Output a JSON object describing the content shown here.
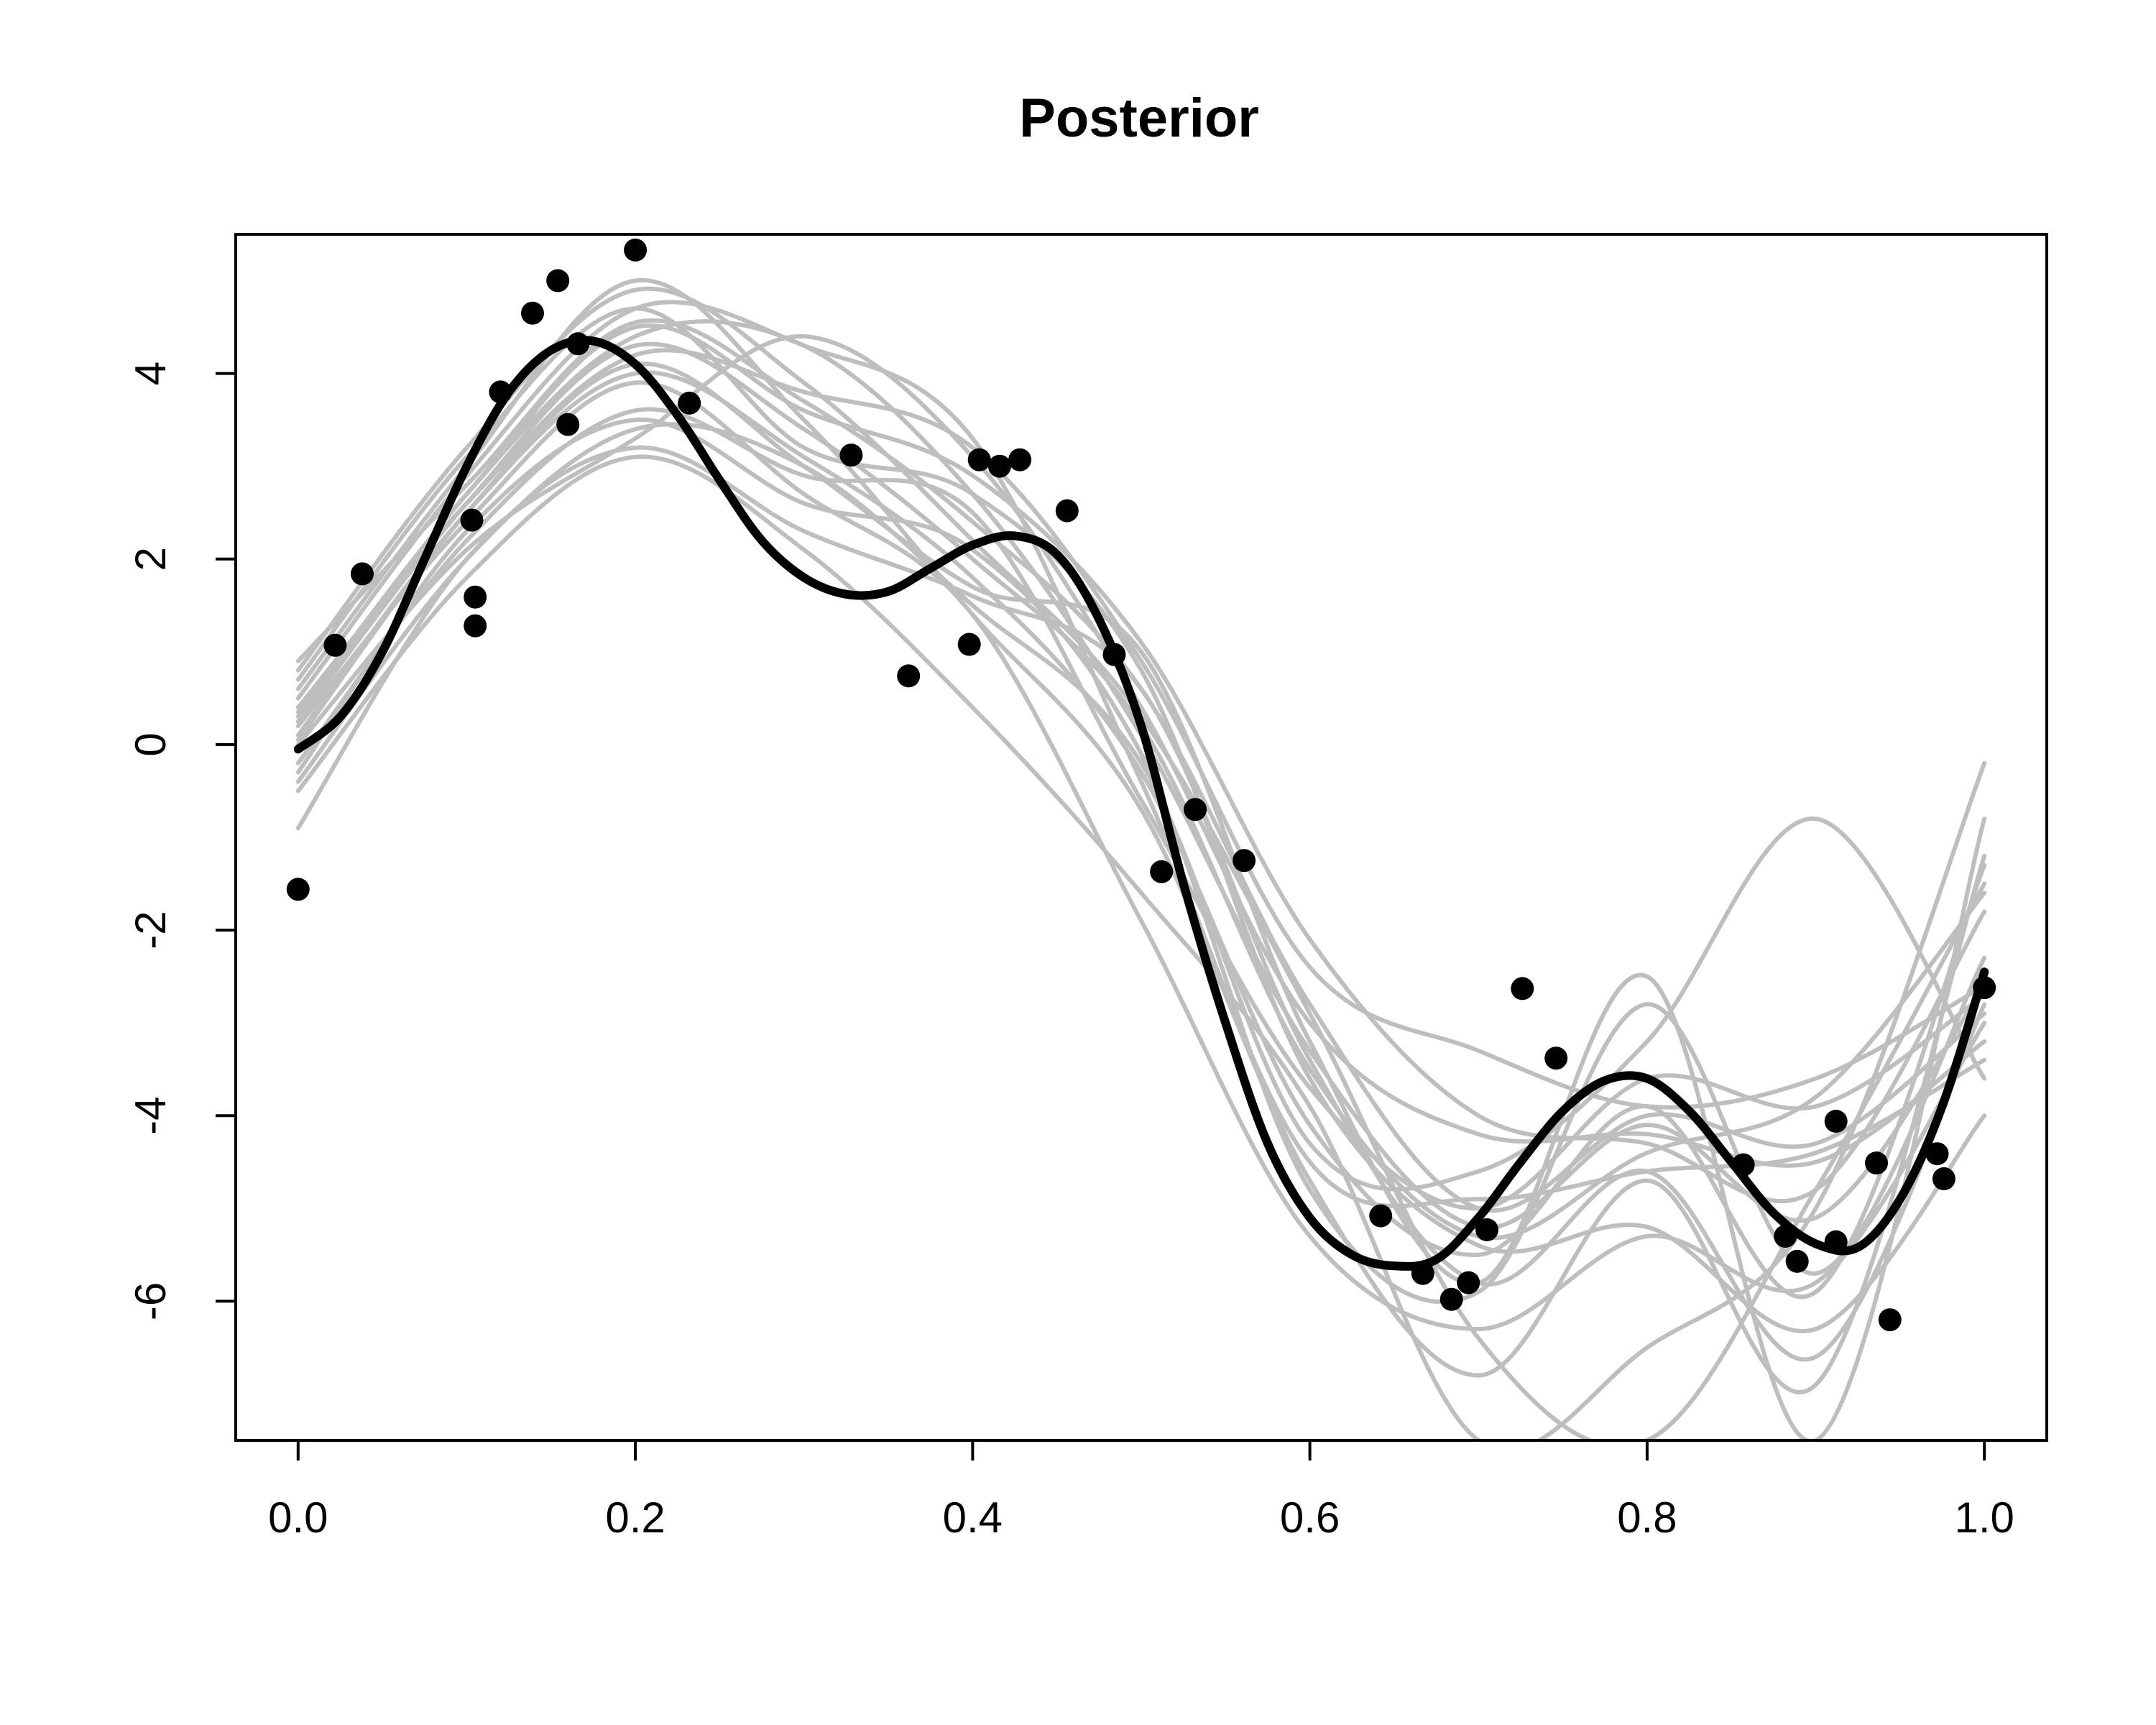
{
  "chart_data": {
    "type": "line",
    "title": "Posterior",
    "xlabel": "",
    "ylabel": "",
    "xlim": [
      -0.037,
      1.037
    ],
    "ylim": [
      -7.5,
      5.5
    ],
    "x_ticks": [
      {
        "value": 0.0,
        "label": "0.0"
      },
      {
        "value": 0.2,
        "label": "0.2"
      },
      {
        "value": 0.4,
        "label": "0.4"
      },
      {
        "value": 0.6,
        "label": "0.6"
      },
      {
        "value": 0.8,
        "label": "0.8"
      },
      {
        "value": 1.0,
        "label": "1.0"
      }
    ],
    "y_ticks": [
      {
        "value": -6,
        "label": "-6"
      },
      {
        "value": -4,
        "label": "-4"
      },
      {
        "value": -2,
        "label": "-2"
      },
      {
        "value": 0,
        "label": "0"
      },
      {
        "value": 2,
        "label": "2"
      },
      {
        "value": 4,
        "label": "4"
      }
    ],
    "grid": false,
    "legend": "none",
    "colors": {
      "mean": "#000000",
      "samples": "#bebebe",
      "points": "#000000"
    },
    "posterior_mean": {
      "x": [
        0.0,
        0.025,
        0.05,
        0.075,
        0.1,
        0.125,
        0.15,
        0.175,
        0.2,
        0.225,
        0.25,
        0.275,
        0.3,
        0.325,
        0.35,
        0.375,
        0.4,
        0.425,
        0.45,
        0.475,
        0.5,
        0.525,
        0.55,
        0.575,
        0.6,
        0.625,
        0.65,
        0.675,
        0.7,
        0.725,
        0.75,
        0.775,
        0.8,
        0.825,
        0.85,
        0.875,
        0.9,
        0.925,
        0.95,
        0.975,
        1.0
      ],
      "y": [
        -0.05,
        0.3,
        1.0,
        2.0,
        3.0,
        3.8,
        4.25,
        4.35,
        4.1,
        3.55,
        2.85,
        2.2,
        1.8,
        1.62,
        1.65,
        1.9,
        2.15,
        2.25,
        2.05,
        1.35,
        0.2,
        -1.5,
        -3.0,
        -4.3,
        -5.1,
        -5.5,
        -5.62,
        -5.55,
        -5.1,
        -4.5,
        -3.95,
        -3.62,
        -3.6,
        -3.95,
        -4.5,
        -5.05,
        -5.38,
        -5.42,
        -4.9,
        -3.9,
        -2.45
      ]
    },
    "sample_x": [
      0.0,
      0.1,
      0.2,
      0.3,
      0.4,
      0.5,
      0.6,
      0.7,
      0.8,
      0.9,
      1.0
    ],
    "samples": [
      [
        0.9,
        2.8,
        4.55,
        3.7,
        2.4,
        0.6,
        -2.8,
        -5.0,
        -4.0,
        -4.3,
        -2.9
      ],
      [
        -0.9,
        2.0,
        3.2,
        2.3,
        1.6,
        0.6,
        -3.4,
        -5.8,
        -4.6,
        -6.6,
        -2.8
      ],
      [
        0.3,
        2.7,
        4.4,
        4.3,
        2.7,
        0.1,
        -3.3,
        -5.2,
        -4.1,
        -5.1,
        -2.6
      ],
      [
        0.1,
        2.5,
        4.0,
        3.1,
        1.8,
        -0.3,
        -4.1,
        -5.5,
        -3.9,
        -5.9,
        -1.3
      ],
      [
        0.6,
        3.0,
        5.0,
        3.5,
        1.4,
        -0.7,
        -4.7,
        -6.8,
        -4.7,
        -6.9,
        -1.2
      ],
      [
        -0.3,
        2.3,
        3.5,
        2.6,
        2.1,
        -0.1,
        -4.8,
        -5.9,
        -2.8,
        -5.7,
        -2.3
      ],
      [
        0.4,
        2.6,
        4.2,
        3.8,
        3.2,
        0.9,
        -2.4,
        -3.3,
        -3.9,
        -3.6,
        -2.6
      ],
      [
        0.0,
        2.1,
        3.3,
        4.4,
        3.1,
        0.4,
        -3.0,
        -4.2,
        -4.2,
        -4.5,
        -3.2
      ],
      [
        0.5,
        2.9,
        4.7,
        4.3,
        3.3,
        -0.4,
        -4.5,
        -4.9,
        -4.6,
        -4.4,
        -3.4
      ],
      [
        -0.5,
        1.8,
        3.1,
        2.1,
        0.4,
        -1.6,
        -3.9,
        -7.5,
        -6.5,
        -5.0,
        -0.2
      ],
      [
        0.2,
        2.4,
        3.9,
        2.7,
        1.4,
        -1.9,
        -5.3,
        -6.3,
        -5.3,
        -5.8,
        -3.0
      ],
      [
        0.7,
        3.1,
        4.7,
        3.2,
        2.7,
        0.8,
        -3.6,
        -5.4,
        -5.2,
        -6.3,
        -4.0
      ],
      [
        -0.2,
        2.2,
        3.6,
        2.9,
        2.5,
        -0.6,
        -3.7,
        -5.0,
        -3.6,
        -3.9,
        -2.7
      ],
      [
        0.35,
        2.7,
        4.5,
        3.6,
        2.9,
        1.1,
        -2.1,
        -4.0,
        -4.3,
        -4.8,
        -1.8
      ],
      [
        0.05,
        2.5,
        4.1,
        3.0,
        1.7,
        1.0,
        -3.2,
        -5.8,
        -2.5,
        -7.5,
        -0.8
      ],
      [
        0.8,
        3.2,
        4.9,
        3.9,
        2.2,
        0.3,
        -2.9,
        -6.4,
        -7.5,
        -4.8,
        -1.5
      ],
      [
        -0.4,
        2.0,
        3.4,
        3.0,
        1.5,
        -0.2,
        -4.3,
        -4.6,
        -3.2,
        -0.8,
        -3.6
      ],
      [
        0.25,
        2.6,
        4.3,
        3.4,
        2.0,
        0.2,
        -3.5,
        -5.3,
        -4.4,
        -3.8,
        -1.6
      ]
    ],
    "observations": [
      {
        "x": 0.0,
        "y": -1.56
      },
      {
        "x": 0.022,
        "y": 1.07
      },
      {
        "x": 0.038,
        "y": 1.84
      },
      {
        "x": 0.103,
        "y": 2.42
      },
      {
        "x": 0.105,
        "y": 1.59
      },
      {
        "x": 0.105,
        "y": 1.28
      },
      {
        "x": 0.12,
        "y": 3.8
      },
      {
        "x": 0.139,
        "y": 4.65
      },
      {
        "x": 0.154,
        "y": 5.0
      },
      {
        "x": 0.16,
        "y": 3.45
      },
      {
        "x": 0.166,
        "y": 4.32
      },
      {
        "x": 0.2,
        "y": 5.33
      },
      {
        "x": 0.232,
        "y": 3.68
      },
      {
        "x": 0.328,
        "y": 3.12
      },
      {
        "x": 0.362,
        "y": 0.74
      },
      {
        "x": 0.398,
        "y": 1.08
      },
      {
        "x": 0.404,
        "y": 3.07
      },
      {
        "x": 0.416,
        "y": 3.0
      },
      {
        "x": 0.428,
        "y": 3.07
      },
      {
        "x": 0.456,
        "y": 2.52
      },
      {
        "x": 0.484,
        "y": 0.97
      },
      {
        "x": 0.512,
        "y": -1.37
      },
      {
        "x": 0.532,
        "y": -0.7
      },
      {
        "x": 0.561,
        "y": -1.25
      },
      {
        "x": 0.642,
        "y": -5.08
      },
      {
        "x": 0.667,
        "y": -5.7
      },
      {
        "x": 0.684,
        "y": -5.98
      },
      {
        "x": 0.694,
        "y": -5.8
      },
      {
        "x": 0.705,
        "y": -5.23
      },
      {
        "x": 0.726,
        "y": -2.63
      },
      {
        "x": 0.746,
        "y": -3.38
      },
      {
        "x": 0.857,
        "y": -4.53
      },
      {
        "x": 0.882,
        "y": -5.3
      },
      {
        "x": 0.889,
        "y": -5.57
      },
      {
        "x": 0.912,
        "y": -5.36
      },
      {
        "x": 0.912,
        "y": -4.06
      },
      {
        "x": 0.936,
        "y": -4.51
      },
      {
        "x": 0.944,
        "y": -6.2
      },
      {
        "x": 0.972,
        "y": -4.41
      },
      {
        "x": 0.976,
        "y": -4.68
      },
      {
        "x": 1.0,
        "y": -2.62
      }
    ]
  }
}
